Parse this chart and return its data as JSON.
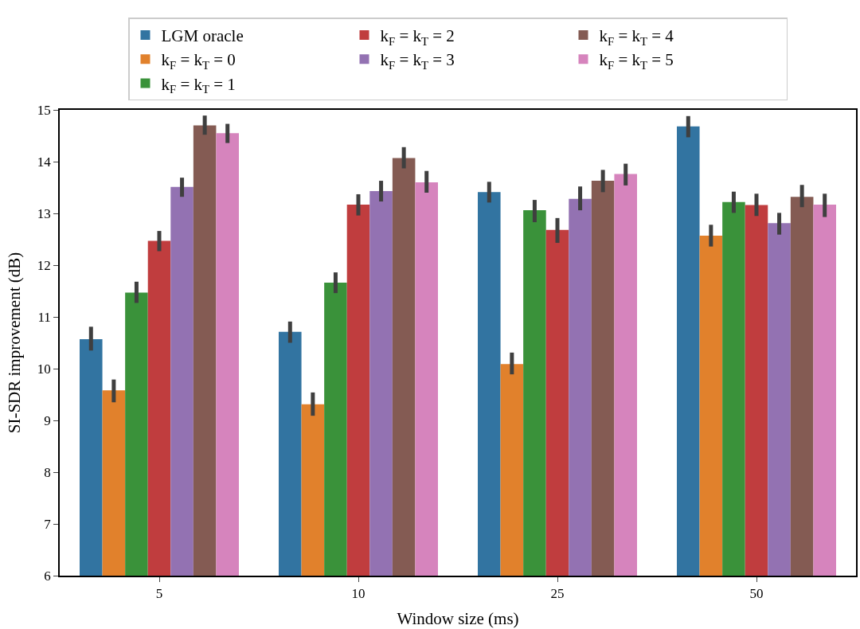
{
  "chart_data": {
    "type": "bar",
    "xlabel": "Window size (ms)",
    "ylabel": "SI-SDR improvement (dB)",
    "categories": [
      "5",
      "10",
      "25",
      "50"
    ],
    "ylim": [
      6,
      15
    ],
    "yticks": [
      6,
      7,
      8,
      9,
      10,
      11,
      12,
      13,
      14,
      15
    ],
    "legend": "top",
    "series": [
      {
        "name": "LGM oracle",
        "color": "#3274a1",
        "values": [
          10.57,
          10.71,
          13.41,
          14.68
        ],
        "errors": [
          [
            10.35,
            10.81
          ],
          [
            10.5,
            10.91
          ],
          [
            13.21,
            13.61
          ],
          [
            14.47,
            14.88
          ]
        ]
      },
      {
        "name": "k$_{F}$ = k$_{T}$ = 0",
        "color": "#e1812c",
        "values": [
          9.58,
          9.31,
          10.09,
          12.57
        ],
        "errors": [
          [
            9.35,
            9.79
          ],
          [
            9.09,
            9.54
          ],
          [
            9.89,
            10.31
          ],
          [
            12.36,
            12.78
          ]
        ]
      },
      {
        "name": "k$_{F}$ = k$_{T}$ = 1",
        "color": "#3a923a",
        "values": [
          11.47,
          11.66,
          13.06,
          13.22
        ],
        "errors": [
          [
            11.27,
            11.68
          ],
          [
            11.46,
            11.86
          ],
          [
            12.83,
            13.26
          ],
          [
            13.01,
            13.42
          ]
        ]
      },
      {
        "name": "k$_{F}$ = k$_{T}$ = 2",
        "color": "#c03d3e",
        "values": [
          12.47,
          13.17,
          12.68,
          13.16
        ],
        "errors": [
          [
            12.27,
            12.66
          ],
          [
            12.96,
            13.37
          ],
          [
            12.43,
            12.91
          ],
          [
            12.95,
            13.38
          ]
        ]
      },
      {
        "name": "k$_{F}$ = k$_{T}$ = 3",
        "color": "#9372b2",
        "values": [
          13.51,
          13.43,
          13.28,
          12.81
        ],
        "errors": [
          [
            13.32,
            13.69
          ],
          [
            13.23,
            13.63
          ],
          [
            13.06,
            13.52
          ],
          [
            12.59,
            13.01
          ]
        ]
      },
      {
        "name": "k$_{F}$ = k$_{T}$ = 4",
        "color": "#845b53",
        "values": [
          14.7,
          14.07,
          13.63,
          13.32
        ],
        "errors": [
          [
            14.52,
            14.89
          ],
          [
            13.87,
            14.28
          ],
          [
            13.41,
            13.84
          ],
          [
            13.12,
            13.55
          ]
        ]
      },
      {
        "name": "k$_{F}$ = k$_{T}$ = 5",
        "color": "#d684bd",
        "values": [
          14.55,
          13.6,
          13.76,
          13.17
        ],
        "errors": [
          [
            14.36,
            14.73
          ],
          [
            13.4,
            13.82
          ],
          [
            13.54,
            13.96
          ],
          [
            12.93,
            13.38
          ]
        ]
      }
    ]
  }
}
